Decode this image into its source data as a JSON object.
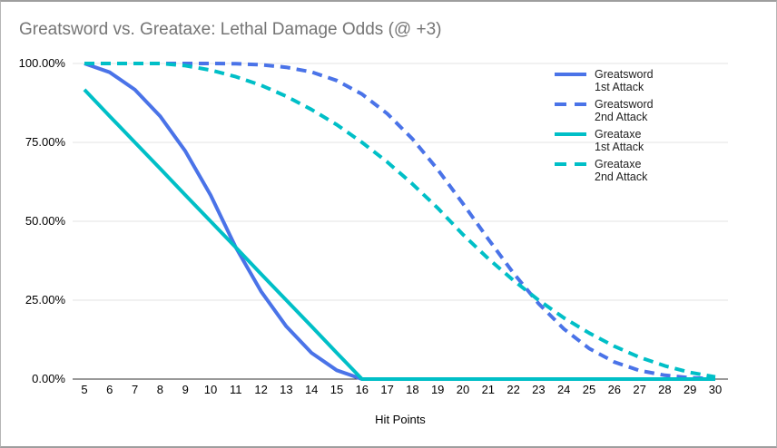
{
  "colors": {
    "blue": "#4a73e8",
    "teal": "#00bfc7",
    "grid": "#e3e3e3",
    "axis": "#333333",
    "title_text": "#757575",
    "tick_text": "#000000",
    "legend_text": "#212121",
    "frame_border": "#9e9e9e",
    "background": "#ffffff"
  },
  "chart_data": {
    "type": "line",
    "title": "Greatsword vs. Greataxe: Lethal Damage Odds (@ +3)",
    "xlabel": "Hit Points",
    "ylabel": "",
    "grid": true,
    "legend_position": "inside-top-right",
    "ylim": [
      0,
      100
    ],
    "y_ticks": [
      {
        "value": 0,
        "label": "0.00%"
      },
      {
        "value": 25,
        "label": "25.00%"
      },
      {
        "value": 50,
        "label": "50.00%"
      },
      {
        "value": 75,
        "label": "75.00%"
      },
      {
        "value": 100,
        "label": "100.00%"
      }
    ],
    "x": [
      5,
      6,
      7,
      8,
      9,
      10,
      11,
      12,
      13,
      14,
      15,
      16,
      17,
      18,
      19,
      20,
      21,
      22,
      23,
      24,
      25,
      26,
      27,
      28,
      29,
      30
    ],
    "series": [
      {
        "id": "greatsword-1st-attack",
        "name": "Greatsword 1st Attack",
        "label_lines": [
          "Greatsword",
          "1st Attack"
        ],
        "color": "#4a73e8",
        "dash": "solid",
        "values": [
          100,
          97.2,
          91.7,
          83.3,
          72.2,
          58.3,
          41.7,
          27.8,
          16.7,
          8.3,
          2.8,
          0,
          0,
          0,
          0,
          0,
          0,
          0,
          0,
          0,
          0,
          0,
          0,
          0,
          0,
          0
        ]
      },
      {
        "id": "greatsword-2nd-attack",
        "name": "Greatsword 2nd Attack",
        "label_lines": [
          "Greatsword",
          "2nd Attack"
        ],
        "color": "#4a73e8",
        "dash": "dashed",
        "values": [
          100,
          100,
          100,
          100,
          100,
          100,
          99.9,
          99.6,
          98.8,
          97.3,
          94.6,
          90.3,
          84.1,
          76.1,
          66.4,
          55.6,
          44.4,
          33.6,
          23.9,
          15.9,
          9.7,
          5.4,
          2.7,
          1.2,
          0.4,
          0.1
        ]
      },
      {
        "id": "greataxe-1st-attack",
        "name": "Greataxe 1st Attack",
        "label_lines": [
          "Greataxe",
          "1st Attack"
        ],
        "color": "#00bfc7",
        "dash": "solid",
        "values": [
          91.7,
          83.3,
          75,
          66.7,
          58.3,
          50,
          41.7,
          33.3,
          25,
          16.7,
          8.3,
          0,
          0,
          0,
          0,
          0,
          0,
          0,
          0,
          0,
          0,
          0,
          0,
          0,
          0,
          0
        ]
      },
      {
        "id": "greataxe-2nd-attack",
        "name": "Greataxe 2nd Attack",
        "label_lines": [
          "Greataxe",
          "2nd Attack"
        ],
        "color": "#00bfc7",
        "dash": "dashed",
        "values": [
          100,
          100,
          100,
          100,
          99.3,
          97.9,
          95.8,
          93.1,
          89.6,
          85.4,
          80.6,
          75,
          68.8,
          61.8,
          54.2,
          45.8,
          38.2,
          31.3,
          25,
          19.4,
          14.6,
          10.4,
          6.9,
          4.2,
          2.1,
          0.7
        ]
      }
    ]
  }
}
